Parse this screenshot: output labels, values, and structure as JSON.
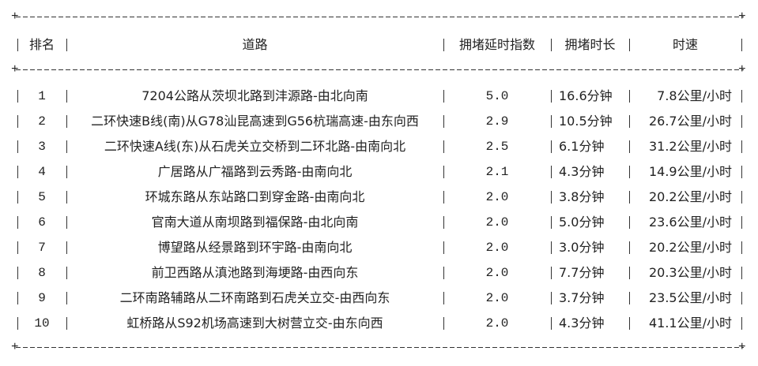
{
  "headers": [
    "排名",
    "道路",
    "拥堵延时指数",
    "拥堵时长",
    "时速"
  ],
  "rows": [
    [
      "1",
      "7204公路从茨坝北路到沣源路-由北向南",
      "5.0",
      "16.6分钟",
      "7.8公里/小时"
    ],
    [
      "2",
      "二环快速B线(南)从G78汕昆高速到G56杭瑞高速-由东向西",
      "2.9",
      "10.5分钟",
      "26.7公里/小时"
    ],
    [
      "3",
      "二环快速A线(东)从石虎关立交桥到二环北路-由南向北",
      "2.5",
      "6.1分钟",
      "31.2公里/小时"
    ],
    [
      "4",
      "广居路从广福路到云秀路-由南向北",
      "2.1",
      "4.3分钟",
      "14.9公里/小时"
    ],
    [
      "5",
      "环城东路从东站路口到穿金路-由南向北",
      "2.0",
      "3.8分钟",
      "20.2公里/小时"
    ],
    [
      "6",
      "官南大道从南坝路到福保路-由北向南",
      "2.0",
      "5.0分钟",
      "23.6公里/小时"
    ],
    [
      "7",
      "博望路从经景路到环宇路-由南向北",
      "2.0",
      "3.0分钟",
      "20.2公里/小时"
    ],
    [
      "8",
      "前卫西路从滇池路到海埂路-由西向东",
      "2.0",
      "7.7分钟",
      "20.3公里/小时"
    ],
    [
      "9",
      "二环南路辅路从二环南路到石虎关立交-由西向东",
      "2.0",
      "3.7分钟",
      "23.5公里/小时"
    ],
    [
      "10",
      "虹桥路从S92机场高速到大树营立交-由东向西",
      "2.0",
      "4.3分钟",
      "41.1公里/小时"
    ]
  ]
}
